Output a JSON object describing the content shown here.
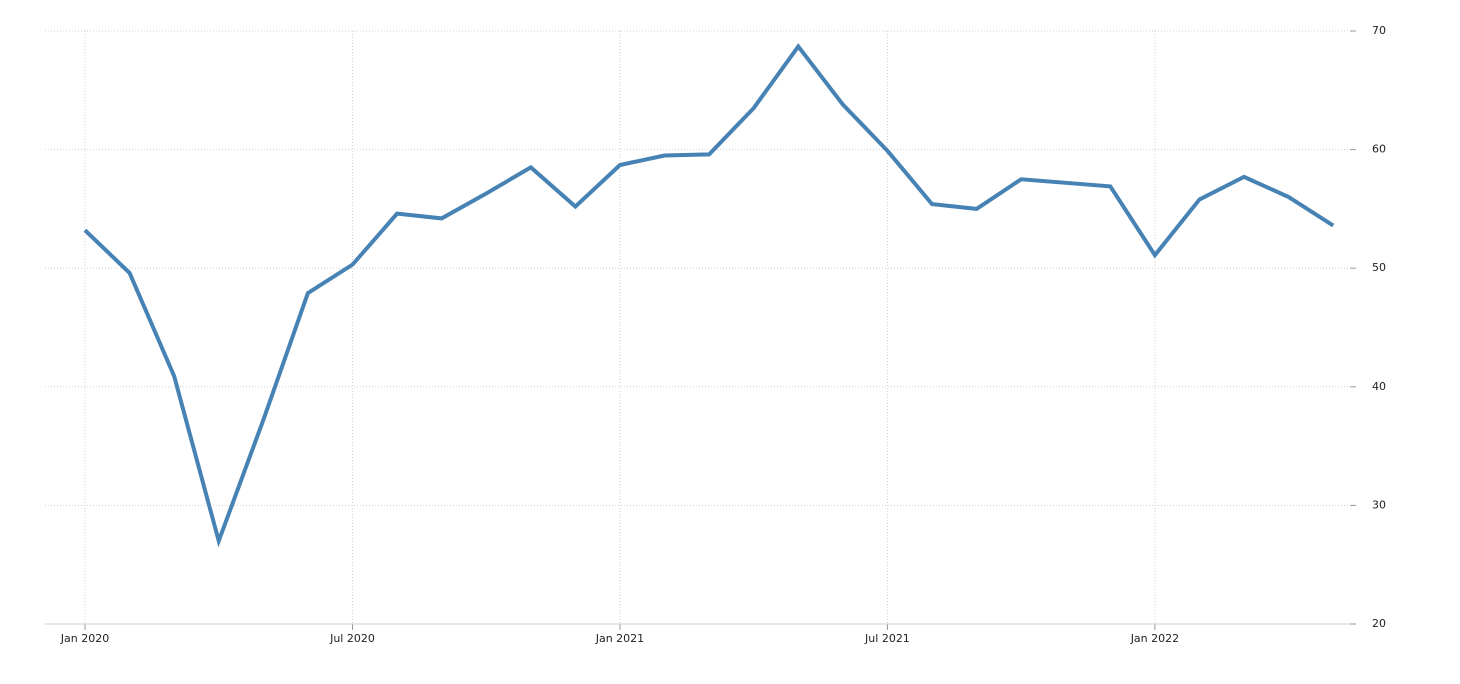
{
  "chart_data": {
    "type": "line",
    "x": [
      "2020-01",
      "2020-02",
      "2020-03",
      "2020-04",
      "2020-05",
      "2020-06",
      "2020-07",
      "2020-08",
      "2020-09",
      "2020-10",
      "2020-11",
      "2020-12",
      "2021-01",
      "2021-02",
      "2021-03",
      "2021-04",
      "2021-05",
      "2021-06",
      "2021-07",
      "2021-08",
      "2021-09",
      "2021-10",
      "2021-11",
      "2021-12",
      "2022-01",
      "2022-02",
      "2022-03",
      "2022-04",
      "2022-05"
    ],
    "series": [
      {
        "color": "#4682b4",
        "values": [
          53.2,
          49.6,
          40.9,
          27.0,
          37.2,
          47.9,
          50.3,
          54.6,
          54.2,
          56.3,
          58.5,
          55.2,
          58.7,
          59.5,
          59.6,
          63.5,
          68.7,
          63.8,
          59.9,
          55.4,
          55.0,
          57.5,
          57.2,
          56.9,
          51.1,
          55.8,
          57.7,
          56.0,
          53.6
        ]
      }
    ],
    "xticks": [
      {
        "value": "2020-01",
        "label": "Jan 2020"
      },
      {
        "value": "2020-07",
        "label": "Jul 2020"
      },
      {
        "value": "2021-01",
        "label": "Jan 2021"
      },
      {
        "value": "2021-07",
        "label": "Jul 2021"
      },
      {
        "value": "2022-01",
        "label": "Jan 2022"
      }
    ],
    "ylim": [
      20,
      70
    ],
    "yticks": [
      20,
      30,
      40,
      50,
      60,
      70
    ],
    "grid": true
  }
}
